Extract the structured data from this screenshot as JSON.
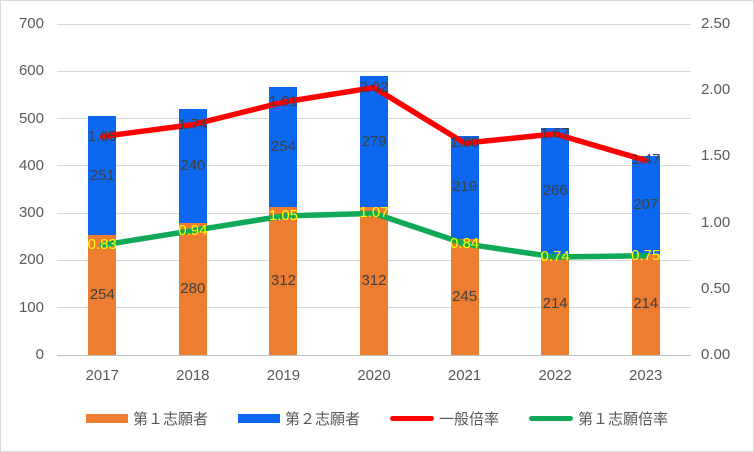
{
  "chart_data": {
    "type": "bar",
    "subtype": "stacked-bar-with-lines",
    "title": "",
    "categories": [
      "2017",
      "2018",
      "2019",
      "2020",
      "2021",
      "2022",
      "2023"
    ],
    "series": [
      {
        "name": "第１志願者",
        "kind": "bar",
        "axis": "left",
        "color": "#ED7D31",
        "values": [
          254,
          280,
          312,
          312,
          245,
          214,
          214
        ],
        "labels": [
          "254",
          "280",
          "312",
          "312",
          "245",
          "214",
          "214"
        ],
        "label_color": "#404040"
      },
      {
        "name": "第２志願者",
        "kind": "bar",
        "axis": "left",
        "color": "#0B66F0",
        "values": [
          251,
          240,
          254,
          279,
          219,
          266,
          207
        ],
        "labels": [
          "251",
          "240",
          "254",
          "279",
          "219",
          "266",
          "207"
        ],
        "label_color": "#404040"
      },
      {
        "name": "一般倍率",
        "kind": "line",
        "axis": "right",
        "color": "#FF0000",
        "values": [
          1.65,
          1.74,
          1.91,
          2.02,
          1.6,
          1.67,
          1.47
        ],
        "labels": [
          "1.65",
          "1.74",
          "1.91",
          "2.02",
          "1.60",
          "1.67",
          "1.47"
        ],
        "label_color": "#404040"
      },
      {
        "name": "第１志願倍率",
        "kind": "line",
        "axis": "right",
        "color": "#0FA958",
        "values": [
          0.83,
          0.94,
          1.05,
          1.07,
          0.84,
          0.74,
          0.75
        ],
        "labels": [
          "0.83",
          "0.94",
          "1.05",
          "1.07",
          "0.84",
          "0.74",
          "0.75"
        ],
        "label_color": "#FFFF00"
      }
    ],
    "left_axis": {
      "min": 0,
      "max": 700,
      "ticks": [
        "700",
        "600",
        "500",
        "400",
        "300",
        "200",
        "100",
        "0"
      ]
    },
    "right_axis": {
      "min": 0,
      "max": 2.5,
      "ticks": [
        "2.50",
        "2.00",
        "1.50",
        "1.00",
        "0.50",
        "0.00"
      ]
    },
    "legend_position": "bottom",
    "grid": "horizontal",
    "colors": {
      "gridline": "#D9D9D9",
      "axis_line": "#BFBFBF",
      "axis_text": "#595959",
      "border": "#D9D9D9",
      "background": "#FFFFFF"
    }
  }
}
